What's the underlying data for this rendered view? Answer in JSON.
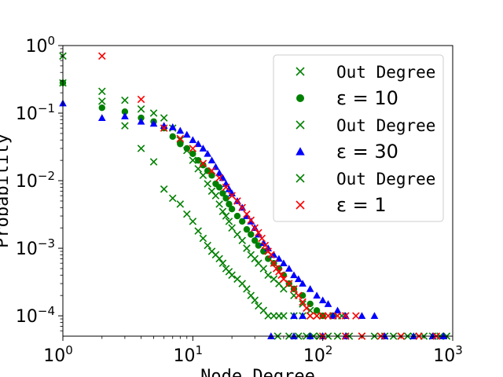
{
  "chart_data": {
    "type": "scatter",
    "title": "",
    "xlabel": "Node Degree",
    "ylabel": "Probability",
    "xscale": "log",
    "yscale": "log",
    "xlim": [
      1,
      1000
    ],
    "ylim": [
      5e-05,
      1
    ],
    "x_ticks": [
      {
        "base": "10",
        "exp": "0",
        "value": 1
      },
      {
        "base": "10",
        "exp": "1",
        "value": 10
      },
      {
        "base": "10",
        "exp": "2",
        "value": 100
      },
      {
        "base": "10",
        "exp": "3",
        "value": 1000
      }
    ],
    "y_ticks": [
      {
        "base": "10",
        "exp": "0",
        "value": 1
      },
      {
        "base": "10",
        "exp": "−1",
        "value": 0.1
      },
      {
        "base": "10",
        "exp": "−2",
        "value": 0.01
      },
      {
        "base": "10",
        "exp": "−3",
        "value": 0.001
      },
      {
        "base": "10",
        "exp": "−4",
        "value": 0.0001
      }
    ],
    "grid": false,
    "legend_placement": "upper-right",
    "legend": [
      {
        "label": "Out Degree",
        "marker": "x",
        "color": "#008000",
        "style": "mono"
      },
      {
        "label": "ε = 10",
        "marker": "circle",
        "color": "#008000",
        "style": "math"
      },
      {
        "label": "Out Degree",
        "marker": "x",
        "color": "#008000",
        "style": "mono"
      },
      {
        "label": "ε = 30",
        "marker": "triangle",
        "color": "#0000ff",
        "style": "math"
      },
      {
        "label": "Out Degree",
        "marker": "x",
        "color": "#008000",
        "style": "mono"
      },
      {
        "label": "ε = 1",
        "marker": "x",
        "color": "#ff0000",
        "style": "math"
      }
    ],
    "series": [
      {
        "marker": "x",
        "color": "#008000",
        "points": [
          [
            1,
            0.7
          ],
          [
            1,
            0.28
          ],
          [
            2,
            0.21
          ],
          [
            2,
            0.15
          ],
          [
            3,
            0.155
          ],
          [
            3,
            0.065
          ],
          [
            4,
            0.115
          ],
          [
            4,
            0.03
          ],
          [
            5,
            0.1
          ],
          [
            5,
            0.019
          ],
          [
            6,
            0.085
          ],
          [
            6,
            0.0075
          ],
          [
            7,
            0.06
          ],
          [
            7,
            0.0055
          ],
          [
            8,
            0.04
          ],
          [
            8,
            0.0045
          ],
          [
            9,
            0.028
          ],
          [
            9,
            0.0032
          ],
          [
            10,
            0.02
          ],
          [
            10,
            0.0025
          ],
          [
            11,
            0.015
          ],
          [
            11,
            0.0018
          ],
          [
            12,
            0.012
          ],
          [
            12,
            0.0014
          ],
          [
            13,
            0.009
          ],
          [
            13,
            0.0011
          ],
          [
            14,
            0.007
          ],
          [
            14,
            0.0009
          ],
          [
            15,
            0.006
          ],
          [
            15,
            0.0008
          ],
          [
            16,
            0.0045
          ],
          [
            16,
            0.0007
          ],
          [
            17,
            0.0035
          ],
          [
            17,
            0.0006
          ],
          [
            18,
            0.003
          ],
          [
            18,
            0.0005
          ],
          [
            19,
            0.0025
          ],
          [
            19,
            0.00045
          ],
          [
            20,
            0.002
          ],
          [
            20,
            0.0004
          ],
          [
            22,
            0.0016
          ],
          [
            22,
            0.00035
          ],
          [
            24,
            0.0013
          ],
          [
            24,
            0.0003
          ],
          [
            26,
            0.001
          ],
          [
            26,
            0.00025
          ],
          [
            28,
            0.0008
          ],
          [
            28,
            0.0002
          ],
          [
            30,
            0.0007
          ],
          [
            30,
            0.00017
          ],
          [
            32,
            0.0006
          ],
          [
            32,
            0.00014
          ],
          [
            35,
            0.0005
          ],
          [
            35,
            0.00012
          ],
          [
            38,
            0.0004
          ],
          [
            38,
            0.0001
          ],
          [
            42,
            0.00035
          ],
          [
            42,
            0.0001
          ],
          [
            46,
            0.0003
          ],
          [
            46,
            0.0001
          ],
          [
            50,
            0.00025
          ],
          [
            50,
            0.0001
          ],
          [
            60,
            0.0002
          ],
          [
            60,
            0.0001
          ],
          [
            70,
            0.00015
          ],
          [
            70,
            0.0001
          ],
          [
            80,
            0.00012
          ],
          [
            80,
            0.0001
          ],
          [
            90,
            0.0001
          ],
          [
            100,
            0.0001
          ],
          [
            120,
            0.0001
          ],
          [
            140,
            0.0001
          ],
          [
            45,
            5e-05
          ],
          [
            55,
            5e-05
          ],
          [
            65,
            5e-05
          ],
          [
            75,
            5e-05
          ],
          [
            85,
            5e-05
          ],
          [
            95,
            5e-05
          ],
          [
            110,
            5e-05
          ],
          [
            130,
            5e-05
          ],
          [
            160,
            5e-05
          ],
          [
            200,
            5e-05
          ],
          [
            250,
            5e-05
          ],
          [
            300,
            5e-05
          ],
          [
            350,
            5e-05
          ],
          [
            400,
            5e-05
          ],
          [
            450,
            5e-05
          ],
          [
            500,
            5e-05
          ],
          [
            600,
            5e-05
          ],
          [
            700,
            5e-05
          ],
          [
            800,
            5e-05
          ],
          [
            900,
            5e-05
          ]
        ]
      },
      {
        "marker": "circle",
        "color": "#008000",
        "points": [
          [
            1,
            0.28
          ],
          [
            2,
            0.12
          ],
          [
            3,
            0.105
          ],
          [
            4,
            0.085
          ],
          [
            5,
            0.075
          ],
          [
            6,
            0.06
          ],
          [
            7,
            0.045
          ],
          [
            8,
            0.035
          ],
          [
            9,
            0.03
          ],
          [
            10,
            0.025
          ],
          [
            11,
            0.02
          ],
          [
            12,
            0.017
          ],
          [
            13,
            0.014
          ],
          [
            14,
            0.012
          ],
          [
            15,
            0.009
          ],
          [
            16,
            0.008
          ],
          [
            17,
            0.0065
          ],
          [
            18,
            0.0055
          ],
          [
            19,
            0.0045
          ],
          [
            20,
            0.0038
          ],
          [
            22,
            0.003
          ],
          [
            24,
            0.0025
          ],
          [
            26,
            0.0019
          ],
          [
            28,
            0.0016
          ],
          [
            30,
            0.0013
          ],
          [
            32,
            0.0011
          ],
          [
            35,
            0.0009
          ],
          [
            38,
            0.0007
          ],
          [
            42,
            0.0006
          ],
          [
            46,
            0.0005
          ],
          [
            50,
            0.0004
          ],
          [
            55,
            0.0003
          ],
          [
            60,
            0.00025
          ],
          [
            70,
            0.0002
          ],
          [
            80,
            0.00015
          ],
          [
            90,
            0.00012
          ],
          [
            100,
            0.0001
          ],
          [
            120,
            0.0001
          ]
        ]
      },
      {
        "marker": "triangle",
        "color": "#0000ff",
        "points": [
          [
            1,
            0.14
          ],
          [
            2,
            0.085
          ],
          [
            3,
            0.09
          ],
          [
            4,
            0.075
          ],
          [
            5,
            0.07
          ],
          [
            6,
            0.065
          ],
          [
            7,
            0.062
          ],
          [
            8,
            0.055
          ],
          [
            9,
            0.048
          ],
          [
            10,
            0.04
          ],
          [
            11,
            0.035
          ],
          [
            12,
            0.03
          ],
          [
            13,
            0.025
          ],
          [
            14,
            0.02
          ],
          [
            15,
            0.016
          ],
          [
            16,
            0.013
          ],
          [
            17,
            0.011
          ],
          [
            18,
            0.009
          ],
          [
            19,
            0.0075
          ],
          [
            20,
            0.0065
          ],
          [
            22,
            0.005
          ],
          [
            24,
            0.004
          ],
          [
            26,
            0.003
          ],
          [
            28,
            0.0025
          ],
          [
            30,
            0.002
          ],
          [
            32,
            0.0016
          ],
          [
            35,
            0.0012
          ],
          [
            38,
            0.001
          ],
          [
            42,
            0.0008
          ],
          [
            46,
            0.0007
          ],
          [
            50,
            0.0006
          ],
          [
            55,
            0.0005
          ],
          [
            60,
            0.0004
          ],
          [
            65,
            0.00035
          ],
          [
            70,
            0.0003
          ],
          [
            80,
            0.00025
          ],
          [
            90,
            0.0002
          ],
          [
            100,
            0.00017
          ],
          [
            110,
            0.00015
          ],
          [
            130,
            0.00012
          ],
          [
            150,
            0.0001
          ],
          [
            200,
            0.0001
          ],
          [
            250,
            0.0001
          ],
          [
            60,
            0.0001
          ],
          [
            70,
            0.0001
          ],
          [
            120,
            0.0001
          ],
          [
            40,
            5e-05
          ],
          [
            60,
            5e-05
          ],
          [
            80,
            5e-05
          ],
          [
            100,
            5e-05
          ],
          [
            150,
            5e-05
          ],
          [
            300,
            5e-05
          ],
          [
            500,
            5e-05
          ],
          [
            700,
            5e-05
          ],
          [
            850,
            5e-05
          ]
        ]
      },
      {
        "marker": "x",
        "color": "#ff0000",
        "points": [
          [
            2,
            0.7
          ],
          [
            4,
            0.16
          ],
          [
            6,
            0.06
          ],
          [
            8,
            0.042
          ],
          [
            10,
            0.03
          ],
          [
            12,
            0.018
          ],
          [
            14,
            0.014
          ],
          [
            16,
            0.011
          ],
          [
            18,
            0.008
          ],
          [
            20,
            0.006
          ],
          [
            22,
            0.005
          ],
          [
            24,
            0.004
          ],
          [
            26,
            0.0032
          ],
          [
            28,
            0.0026
          ],
          [
            30,
            0.002
          ],
          [
            32,
            0.0017
          ],
          [
            34,
            0.0014
          ],
          [
            36,
            0.0011
          ],
          [
            38,
            0.0009
          ],
          [
            40,
            0.0008
          ],
          [
            42,
            0.0006
          ],
          [
            44,
            0.0005
          ],
          [
            46,
            0.00045
          ],
          [
            48,
            0.0004
          ],
          [
            50,
            0.00035
          ],
          [
            55,
            0.0003
          ],
          [
            60,
            0.00025
          ],
          [
            65,
            0.0002
          ],
          [
            70,
            0.00016
          ],
          [
            75,
            0.00013
          ],
          [
            80,
            0.0001
          ],
          [
            90,
            0.0001
          ],
          [
            100,
            0.0001
          ],
          [
            110,
            0.0001
          ],
          [
            130,
            0.0001
          ],
          [
            150,
            0.0001
          ],
          [
            180,
            0.0001
          ],
          [
            100,
            5e-05
          ],
          [
            150,
            5e-05
          ],
          [
            200,
            5e-05
          ],
          [
            280,
            5e-05
          ],
          [
            400,
            5e-05
          ],
          [
            550,
            5e-05
          ],
          [
            750,
            5e-05
          ]
        ]
      }
    ]
  }
}
